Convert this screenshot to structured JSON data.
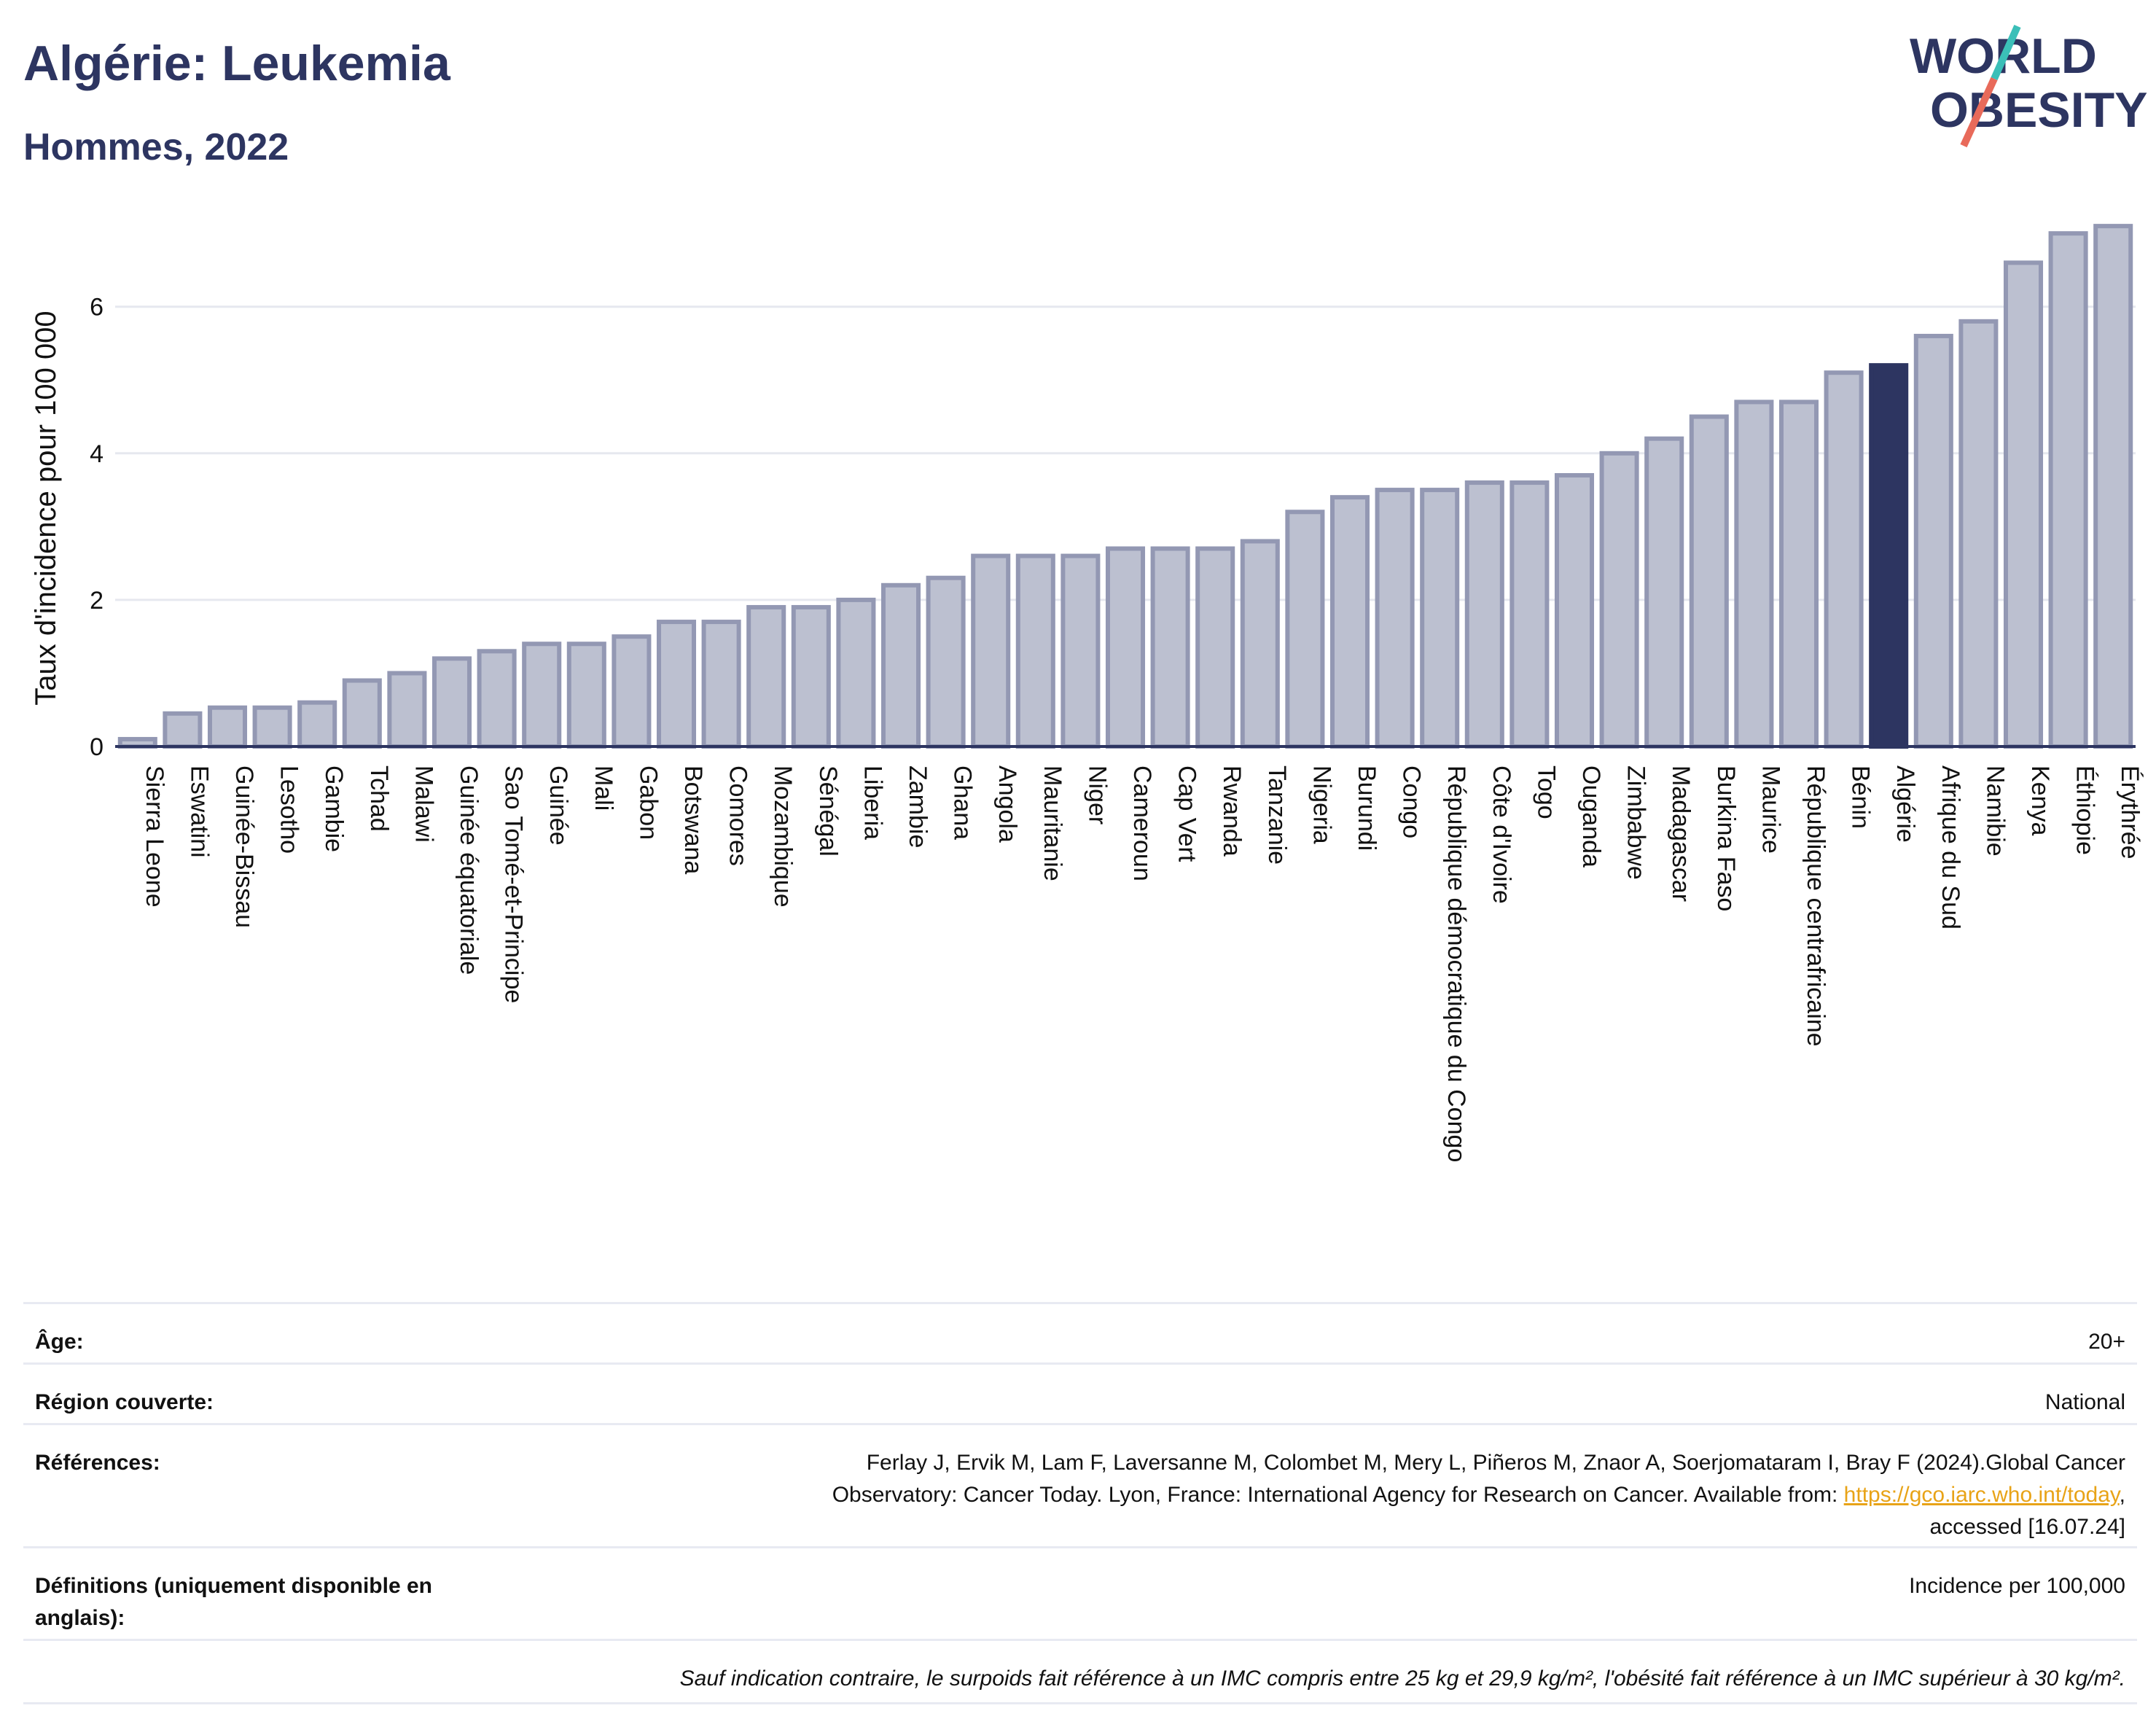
{
  "header": {
    "title": "Algérie: Leukemia",
    "subtitle": "Hommes, 2022",
    "logo_line1": "WORLD",
    "logo_line2": "OBESITY"
  },
  "chart_data": {
    "type": "bar",
    "title": "",
    "xlabel": "",
    "ylabel": "Taux d'incidence pour 100 000",
    "ylim": [
      0,
      7.3
    ],
    "yticks": [
      0,
      2,
      4,
      6
    ],
    "grid": true,
    "highlight": "Algérie",
    "colors": {
      "bar": "#bcc0d0",
      "bar_edge": "#9398b3",
      "highlight": "#2d3561",
      "grid": "#e6e8ef",
      "axis": "#2d3561"
    },
    "categories": [
      "Sierra Leone",
      "Eswatini",
      "Guinée-Bissau",
      "Lesotho",
      "Gambie",
      "Tchad",
      "Malawi",
      "Guinée équatoriale",
      "Sao Tomé-et-Principe",
      "Guinée",
      "Mali",
      "Gabon",
      "Botswana",
      "Comores",
      "Mozambique",
      "Sénégal",
      "Liberia",
      "Zambie",
      "Ghana",
      "Angola",
      "Mauritanie",
      "Niger",
      "Cameroun",
      "Cap Vert",
      "Rwanda",
      "Tanzanie",
      "Nigeria",
      "Burundi",
      "Congo",
      "République démocratique du Congo",
      "Côte d'Ivoire",
      "Togo",
      "Ouganda",
      "Zimbabwe",
      "Madagascar",
      "Burkina Faso",
      "Maurice",
      "République centrafricaine",
      "Bénin",
      "Algérie",
      "Afrique du Sud",
      "Namibie",
      "Kenya",
      "Éthiopie",
      "Érythrée"
    ],
    "values": [
      0.1,
      0.45,
      0.53,
      0.53,
      0.6,
      0.9,
      1.0,
      1.2,
      1.3,
      1.4,
      1.4,
      1.5,
      1.7,
      1.7,
      1.9,
      1.9,
      2.0,
      2.2,
      2.3,
      2.6,
      2.6,
      2.6,
      2.7,
      2.7,
      2.7,
      2.8,
      3.2,
      3.4,
      3.5,
      3.5,
      3.6,
      3.6,
      3.7,
      4.0,
      4.2,
      4.5,
      4.7,
      4.7,
      5.1,
      5.2,
      5.6,
      5.8,
      6.6,
      7.0,
      7.1
    ]
  },
  "info": {
    "age_label": "Âge:",
    "age_value": "20+",
    "region_label": "Région couverte:",
    "region_value": "National",
    "references_label": "Références:",
    "references_line1": "Ferlay J, Ervik M, Lam F, Laversanne M, Colombet M, Mery L, Piñeros M, Znaor A, Soerjomataram I, Bray F (2024).Global Cancer",
    "references_line2": "Observatory: Cancer Today. Lyon, France: International Agency for Research on Cancer. Available from: ",
    "references_link": "https://gco.iarc.who.int/today",
    "references_line2_end": ",",
    "references_line3": "accessed [16.07.24]",
    "definitions_label": "Définitions (uniquement disponible en anglais):",
    "definitions_value": "Incidence per 100,000",
    "note": "Sauf indication contraire, le surpoids fait référence à un IMC compris entre 25 kg et 29,9 kg/m², l'obésité fait référence à un IMC supérieur à 30 kg/m²."
  }
}
